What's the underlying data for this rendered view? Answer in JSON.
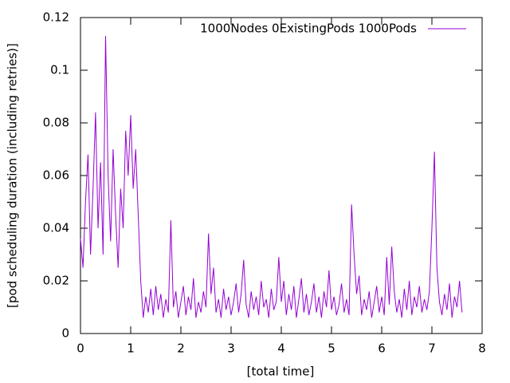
{
  "chart_data": {
    "type": "line",
    "xlabel": "[total time]",
    "ylabel": "[pod scheduling duration (including retries)]",
    "xlim": [
      0,
      8
    ],
    "xticks": [
      0,
      1,
      2,
      3,
      4,
      5,
      6,
      7,
      8
    ],
    "ylim": [
      0,
      0.12
    ],
    "yticks": [
      0,
      0.02,
      0.04,
      0.06,
      0.08,
      0.1,
      0.12
    ],
    "legend_position": "top-right",
    "x": [
      0,
      0.05,
      0.1,
      0.15,
      0.2,
      0.25,
      0.3,
      0.35,
      0.4,
      0.45,
      0.5,
      0.55,
      0.6,
      0.65,
      0.7,
      0.75,
      0.8,
      0.85,
      0.9,
      0.95,
      1,
      1.05,
      1.1,
      1.15,
      1.2,
      1.25,
      1.3,
      1.35,
      1.4,
      1.45,
      1.5,
      1.55,
      1.6,
      1.65,
      1.7,
      1.75,
      1.8,
      1.85,
      1.9,
      1.95,
      2,
      2.05,
      2.1,
      2.15,
      2.2,
      2.25,
      2.3,
      2.35,
      2.4,
      2.45,
      2.5,
      2.55,
      2.6,
      2.65,
      2.7,
      2.75,
      2.8,
      2.85,
      2.9,
      2.95,
      3,
      3.05,
      3.1,
      3.15,
      3.2,
      3.25,
      3.3,
      3.35,
      3.4,
      3.45,
      3.5,
      3.55,
      3.6,
      3.65,
      3.7,
      3.75,
      3.8,
      3.85,
      3.9,
      3.95,
      4,
      4.05,
      4.1,
      4.15,
      4.2,
      4.25,
      4.3,
      4.35,
      4.4,
      4.45,
      4.5,
      4.55,
      4.6,
      4.65,
      4.7,
      4.75,
      4.8,
      4.85,
      4.9,
      4.95,
      5,
      5.05,
      5.1,
      5.15,
      5.2,
      5.25,
      5.3,
      5.35,
      5.4,
      5.45,
      5.5,
      5.55,
      5.6,
      5.65,
      5.7,
      5.75,
      5.8,
      5.85,
      5.9,
      5.95,
      6,
      6.05,
      6.1,
      6.15,
      6.2,
      6.25,
      6.3,
      6.35,
      6.4,
      6.45,
      6.5,
      6.55,
      6.6,
      6.65,
      6.7,
      6.75,
      6.8,
      6.85,
      6.9,
      6.95,
      7,
      7.05,
      7.1,
      7.15,
      7.2,
      7.25,
      7.3,
      7.35,
      7.4,
      7.45,
      7.5,
      7.55,
      7.6
    ],
    "series": [
      {
        "name": "1000Nodes 0ExistingPods 1000Pods",
        "color": "#9400d3",
        "values": [
          0.036,
          0.025,
          0.05,
          0.068,
          0.03,
          0.055,
          0.084,
          0.04,
          0.065,
          0.03,
          0.113,
          0.06,
          0.035,
          0.07,
          0.045,
          0.025,
          0.055,
          0.04,
          0.077,
          0.06,
          0.083,
          0.055,
          0.07,
          0.045,
          0.02,
          0.006,
          0.014,
          0.008,
          0.017,
          0.007,
          0.018,
          0.009,
          0.015,
          0.006,
          0.013,
          0.008,
          0.043,
          0.01,
          0.016,
          0.006,
          0.012,
          0.018,
          0.007,
          0.014,
          0.009,
          0.021,
          0.006,
          0.012,
          0.008,
          0.016,
          0.01,
          0.038,
          0.015,
          0.025,
          0.008,
          0.013,
          0.006,
          0.017,
          0.009,
          0.014,
          0.007,
          0.012,
          0.019,
          0.008,
          0.015,
          0.028,
          0.011,
          0.006,
          0.016,
          0.009,
          0.014,
          0.007,
          0.02,
          0.01,
          0.013,
          0.006,
          0.017,
          0.009,
          0.012,
          0.029,
          0.012,
          0.02,
          0.007,
          0.015,
          0.009,
          0.018,
          0.006,
          0.013,
          0.021,
          0.008,
          0.015,
          0.007,
          0.012,
          0.019,
          0.008,
          0.014,
          0.006,
          0.016,
          0.01,
          0.024,
          0.009,
          0.014,
          0.007,
          0.011,
          0.019,
          0.008,
          0.013,
          0.007,
          0.049,
          0.03,
          0.015,
          0.022,
          0.007,
          0.013,
          0.009,
          0.016,
          0.006,
          0.012,
          0.018,
          0.008,
          0.014,
          0.007,
          0.029,
          0.011,
          0.033,
          0.016,
          0.008,
          0.013,
          0.006,
          0.017,
          0.009,
          0.02,
          0.007,
          0.014,
          0.01,
          0.018,
          0.008,
          0.013,
          0.009,
          0.016,
          0.04,
          0.069,
          0.025,
          0.012,
          0.007,
          0.015,
          0.009,
          0.019,
          0.006,
          0.014,
          0.01,
          0.02,
          0.008
        ]
      }
    ]
  }
}
